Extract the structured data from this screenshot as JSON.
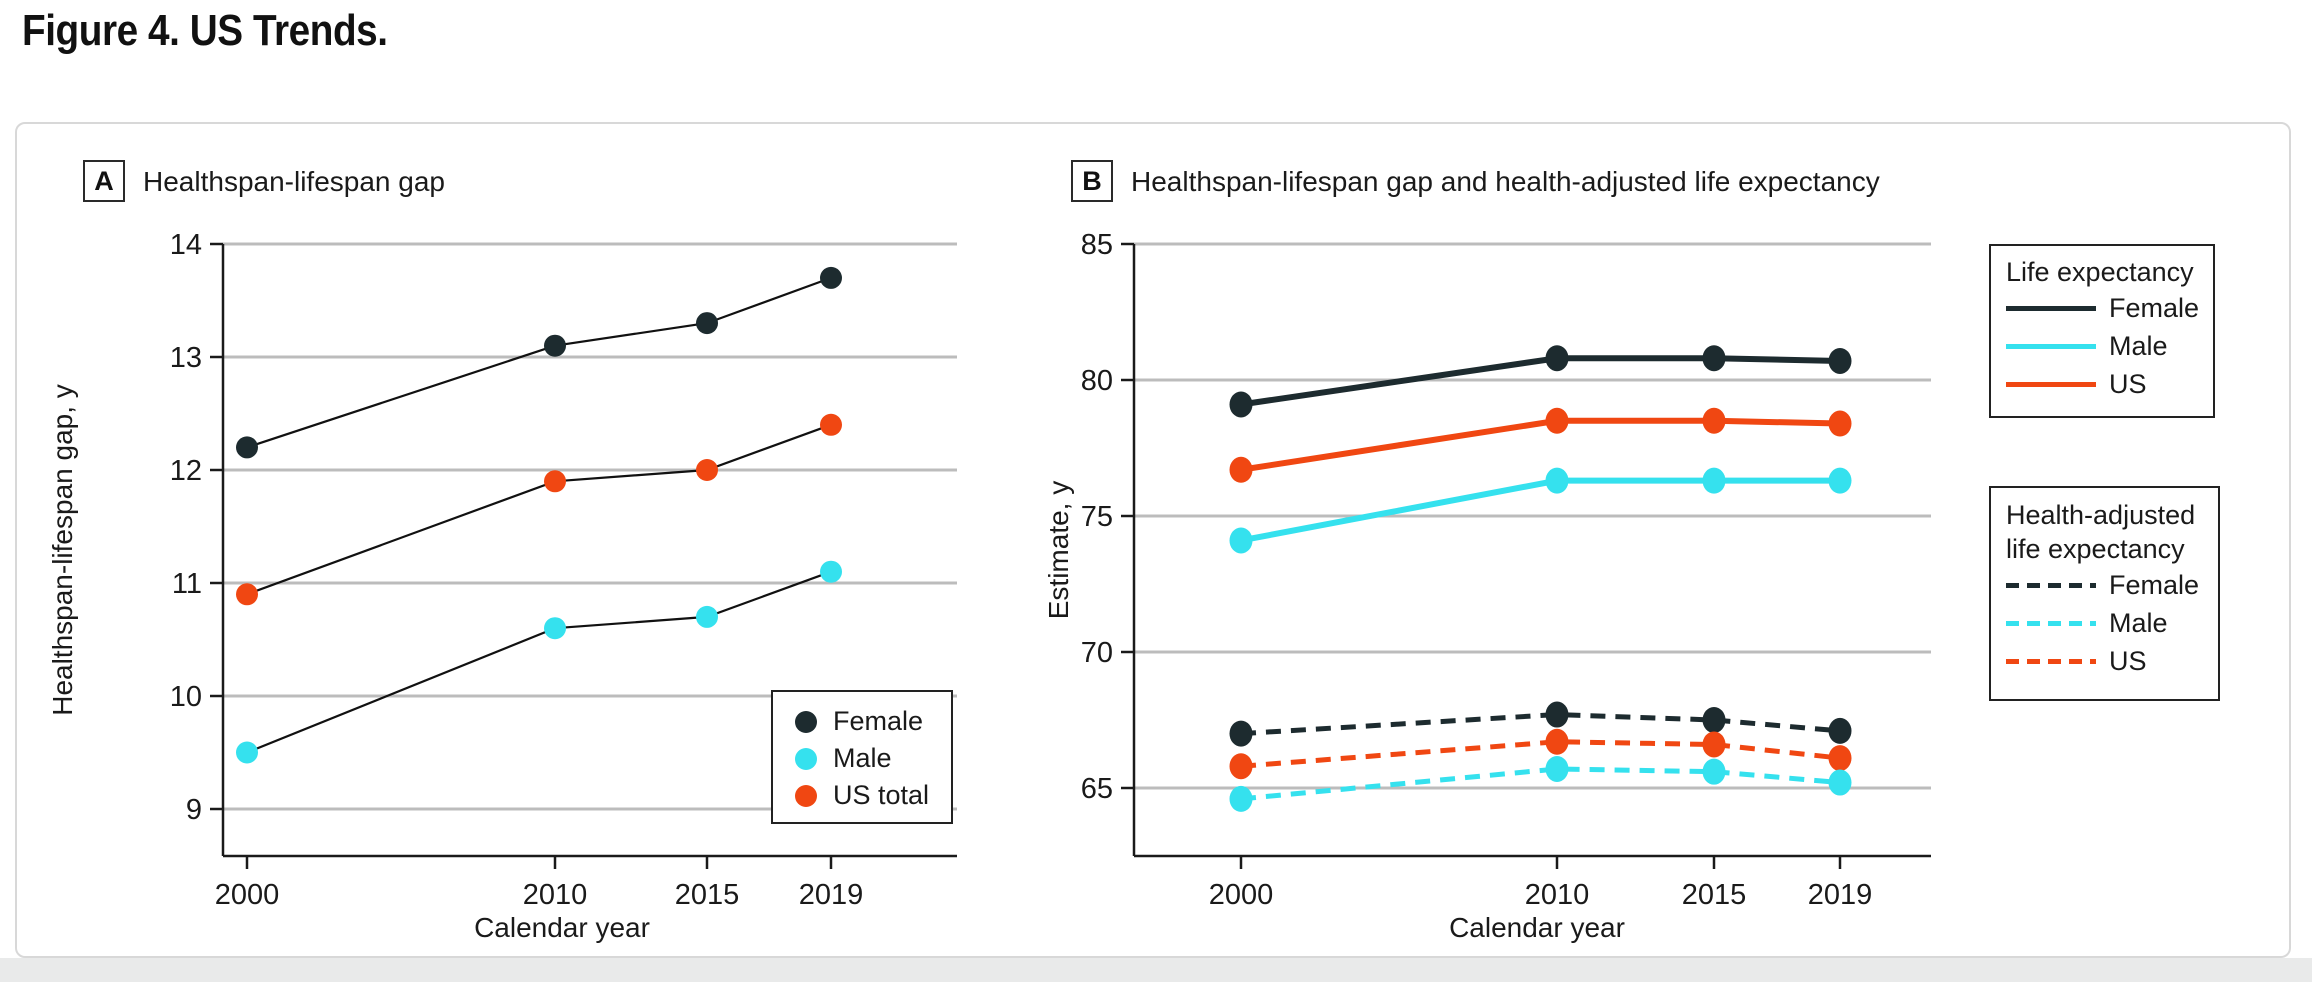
{
  "figure_title": "Figure 4. US Trends.",
  "colors": {
    "female": "#1d2b2f",
    "male": "#35e1ee",
    "us": "#f04712",
    "gridline": "#bcbcbc",
    "axis": "#1a1a1a"
  },
  "chart_data": [
    {
      "type": "line",
      "panel_label": "A",
      "title": "Healthspan-lifespan gap",
      "xlabel": "Calendar year",
      "ylabel": "Healthspan-lifespan gap, y",
      "x": [
        2000,
        2010,
        2015,
        2019
      ],
      "yticks": [
        9,
        10,
        11,
        12,
        13,
        14
      ],
      "ylim": [
        8.6,
        14
      ],
      "grid": true,
      "line_style": "thin black connectors with colored round markers",
      "legend_position": "inside bottom-right",
      "series": [
        {
          "name": "Female",
          "color": "#1d2b2f",
          "dashed": false,
          "values": [
            12.2,
            13.1,
            13.3,
            13.7
          ]
        },
        {
          "name": "Male",
          "color": "#35e1ee",
          "dashed": false,
          "values": [
            9.5,
            10.6,
            10.7,
            11.1
          ]
        },
        {
          "name": "US total",
          "color": "#f04712",
          "dashed": false,
          "values": [
            10.9,
            11.9,
            12.0,
            12.4
          ]
        }
      ],
      "legend": {
        "entries": [
          "Female",
          "Male",
          "US total"
        ]
      }
    },
    {
      "type": "line",
      "panel_label": "B",
      "title": "Healthspan-lifespan gap and health-adjusted life expectancy",
      "xlabel": "Calendar year",
      "ylabel": "Estimate, y",
      "x": [
        2000,
        2010,
        2015,
        2019
      ],
      "yticks": [
        65,
        70,
        75,
        80,
        85
      ],
      "ylim": [
        62.5,
        85
      ],
      "grid": true,
      "line_style": "thick colored lines, solid for life expectancy, dashed for health-adjusted life expectancy",
      "legend_position": "outside right",
      "series": [
        {
          "name": "Female",
          "group": "Life expectancy",
          "color": "#1d2b2f",
          "dashed": false,
          "values": [
            79.1,
            80.8,
            80.8,
            80.7
          ]
        },
        {
          "name": "US",
          "group": "Life expectancy",
          "color": "#f04712",
          "dashed": false,
          "values": [
            76.7,
            78.5,
            78.5,
            78.4
          ]
        },
        {
          "name": "Male",
          "group": "Life expectancy",
          "color": "#35e1ee",
          "dashed": false,
          "values": [
            74.1,
            76.3,
            76.3,
            76.3
          ]
        },
        {
          "name": "Female",
          "group": "Health-adjusted life expectancy",
          "color": "#1d2b2f",
          "dashed": true,
          "values": [
            67.0,
            67.7,
            67.5,
            67.1
          ]
        },
        {
          "name": "US",
          "group": "Health-adjusted life expectancy",
          "color": "#f04712",
          "dashed": true,
          "values": [
            65.8,
            66.7,
            66.6,
            66.1
          ]
        },
        {
          "name": "Male",
          "group": "Health-adjusted life expectancy",
          "color": "#35e1ee",
          "dashed": true,
          "values": [
            64.6,
            65.7,
            65.6,
            65.2
          ]
        }
      ],
      "legends": [
        {
          "title": "Life expectancy",
          "dashed": false,
          "entries": [
            {
              "label": "Female",
              "color": "#1d2b2f"
            },
            {
              "label": "Male",
              "color": "#35e1ee"
            },
            {
              "label": "US",
              "color": "#f04712"
            }
          ]
        },
        {
          "title": "Health-adjusted life expectancy",
          "dashed": true,
          "entries": [
            {
              "label": "Female",
              "color": "#1d2b2f"
            },
            {
              "label": "Male",
              "color": "#35e1ee"
            },
            {
              "label": "US",
              "color": "#f04712"
            }
          ]
        }
      ]
    }
  ]
}
